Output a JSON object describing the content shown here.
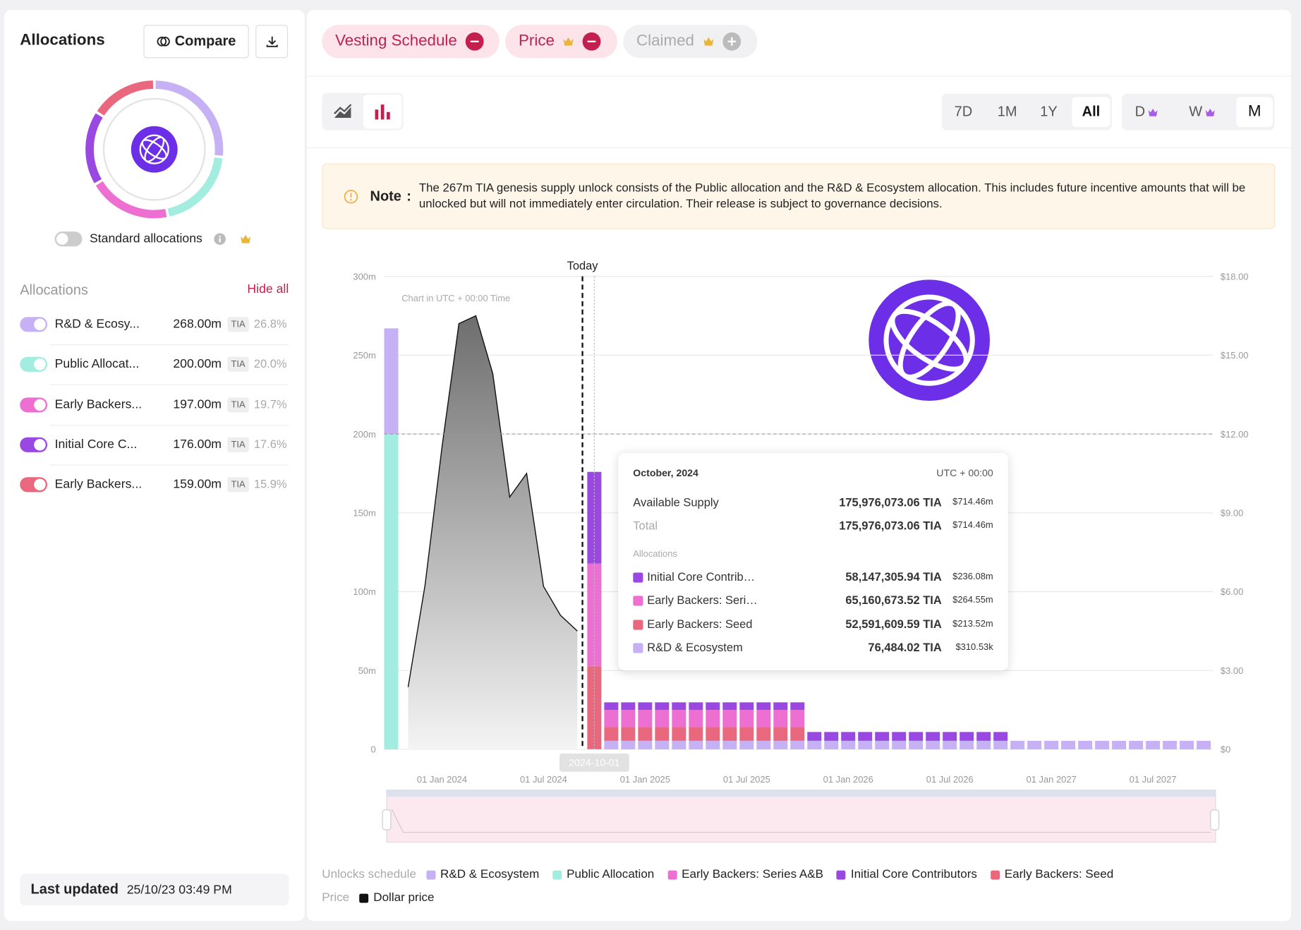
{
  "sidebar": {
    "title": "Allocations",
    "compare_button": "Compare",
    "toggle_label": "Standard allocations",
    "list_title": "Allocations",
    "hide_all": "Hide all",
    "allocations": [
      {
        "name": "R&D & Ecosy...",
        "amount": "268.00m",
        "unit": "TIA",
        "share": 26.8,
        "share_label": "26.8%",
        "color": "#c6b1f5"
      },
      {
        "name": "Public Allocat...",
        "amount": "200.00m",
        "unit": "TIA",
        "share": 20.0,
        "share_label": "20.0%",
        "color": "#a3ede0"
      },
      {
        "name": "Early Backers...",
        "amount": "197.00m",
        "unit": "TIA",
        "share": 19.7,
        "share_label": "19.7%",
        "color": "#ee6fd2"
      },
      {
        "name": "Initial Core C...",
        "amount": "176.00m",
        "unit": "TIA",
        "share": 17.6,
        "share_label": "17.6%",
        "color": "#9a48e2"
      },
      {
        "name": "Early Backers...",
        "amount": "159.00m",
        "unit": "TIA",
        "share": 15.9,
        "share_label": "15.9%",
        "color": "#e9687e"
      }
    ],
    "last_updated_label": "Last updated",
    "last_updated": "25/10/23 03:49 PM"
  },
  "tabs": [
    "Vesting Schedule",
    "Price",
    "Claimed"
  ],
  "time_ranges": [
    "7D",
    "1M",
    "1Y",
    "All"
  ],
  "intervals": [
    "D",
    "W",
    "M"
  ],
  "note": {
    "label": "Note",
    "separator": ":",
    "text": "The 267m TIA genesis supply unlock consists of the Public allocation and the R&D & Ecosystem allocation. This includes future incentive amounts that will be unlocked but will not immediately enter circulation. Their release is subject to governance decisions."
  },
  "chart": {
    "type": "bar",
    "stacked": true,
    "today_label": "Today",
    "timezone_note": "Chart in UTC + 00:00 Time",
    "crosshair_label": "2024-10-01",
    "reference_line": 200,
    "categories": [
      null,
      null,
      null,
      "01 Jan 2024",
      null,
      null,
      null,
      null,
      null,
      "01 Jul 2024",
      null,
      null,
      null,
      null,
      null,
      "01 Jan 2025",
      null,
      null,
      null,
      null,
      null,
      "01 Jul 2025",
      null,
      null,
      null,
      null,
      null,
      "01 Jan 2026",
      null,
      null,
      null,
      null,
      null,
      "01 Jul 2026",
      null,
      null,
      null,
      null,
      null,
      "01 Jan 2027",
      null,
      null,
      null,
      null,
      null,
      "01 Jul 2027",
      null,
      null,
      null
    ],
    "series": [
      {
        "name": "R&D & Ecosystem",
        "color": "#c6b1f5",
        "values": [
          67,
          0,
          0,
          0,
          0,
          0,
          0,
          0,
          0,
          0,
          0,
          0,
          0.0765,
          5.4,
          5.4,
          5.4,
          5.4,
          5.4,
          5.4,
          5.4,
          5.4,
          5.4,
          5.4,
          5.4,
          5.4,
          5.4,
          5.4,
          5.4,
          5.4,
          5.4,
          5.4,
          5.4,
          5.4,
          5.4,
          5.4,
          5.4,
          5.4,
          5.4,
          5.4,
          5.4,
          5.4,
          5.4,
          5.4,
          5.4,
          5.4,
          5.4,
          5.4,
          5.4,
          5.4
        ]
      },
      {
        "name": "Public Allocation",
        "color": "#a3ede0",
        "values": [
          200,
          0,
          0,
          0,
          0,
          0,
          0,
          0,
          0,
          0,
          0,
          0,
          0,
          0,
          0,
          0,
          0,
          0,
          0,
          0,
          0,
          0,
          0,
          0,
          0,
          0,
          0,
          0,
          0,
          0,
          0,
          0,
          0,
          0,
          0,
          0,
          0,
          0,
          0,
          0,
          0,
          0,
          0,
          0,
          0,
          0,
          0,
          0,
          0
        ]
      },
      {
        "name": "Early Backers: Series A&B",
        "color": "#ee6fd2",
        "values": [
          0,
          0,
          0,
          0,
          0,
          0,
          0,
          0,
          0,
          0,
          0,
          0,
          65.16,
          10.9,
          10.9,
          10.9,
          10.9,
          10.9,
          10.9,
          10.9,
          10.9,
          10.9,
          10.9,
          10.9,
          10.9,
          0,
          0,
          0,
          0,
          0,
          0,
          0,
          0,
          0,
          0,
          0,
          0,
          0,
          0,
          0,
          0,
          0,
          0,
          0,
          0,
          0,
          0,
          0,
          0
        ]
      },
      {
        "name": "Initial Core Contributors",
        "color": "#9a48e2",
        "values": [
          0,
          0,
          0,
          0,
          0,
          0,
          0,
          0,
          0,
          0,
          0,
          0,
          58.15,
          4.8,
          4.8,
          4.8,
          4.8,
          4.8,
          4.8,
          4.8,
          4.8,
          4.8,
          4.8,
          4.8,
          4.8,
          5.6,
          5.6,
          5.6,
          5.6,
          5.6,
          5.6,
          5.6,
          5.6,
          5.6,
          5.6,
          5.6,
          5.6,
          0,
          0,
          0,
          0,
          0,
          0,
          0,
          0,
          0,
          0,
          0,
          0
        ]
      },
      {
        "name": "Early Backers: Seed",
        "color": "#e9687e",
        "values": [
          0,
          0,
          0,
          0,
          0,
          0,
          0,
          0,
          0,
          0,
          0,
          0,
          52.59,
          8.7,
          8.7,
          8.7,
          8.7,
          8.7,
          8.7,
          8.7,
          8.7,
          8.7,
          8.7,
          8.7,
          8.7,
          0,
          0,
          0,
          0,
          0,
          0,
          0,
          0,
          0,
          0,
          0,
          0,
          0,
          0,
          0,
          0,
          0,
          0,
          0,
          0,
          0,
          0,
          0,
          0
        ]
      },
      {
        "name": "Dollar price",
        "color": "#111111",
        "type": "line",
        "axis": "y2",
        "values": [
          null,
          2.37,
          6.25,
          11.5,
          16.2,
          16.5,
          14.3,
          9.6,
          10.5,
          6.2,
          5.1,
          4.5,
          null,
          null,
          null,
          null,
          null,
          null,
          null,
          null,
          null,
          null,
          null,
          null,
          null,
          null,
          null,
          null,
          null,
          null,
          null,
          null,
          null,
          null,
          null,
          null,
          null,
          null,
          null,
          null,
          null,
          null,
          null,
          null,
          null,
          null,
          null,
          null,
          null
        ]
      }
    ],
    "ylim": [
      0,
      300
    ],
    "yticks": [
      0,
      {
        "value": 50,
        "label": "50m"
      },
      {
        "value": 100,
        "label": "100m"
      },
      {
        "value": 150,
        "label": "150m"
      },
      {
        "value": 200,
        "label": "200m"
      },
      {
        "value": 250,
        "label": "250m"
      },
      {
        "value": 300,
        "label": "300m"
      }
    ],
    "y2lim": [
      0,
      18
    ],
    "y2ticks": [
      {
        "value": 0,
        "label": "$0"
      },
      {
        "value": 3,
        "label": "$3.00"
      },
      {
        "value": 6,
        "label": "$6.00"
      },
      {
        "value": 9,
        "label": "$9.00"
      },
      {
        "value": 12,
        "label": "$12.00"
      },
      {
        "value": 15,
        "label": "$15.00"
      },
      {
        "value": 18,
        "label": "$18.00"
      }
    ],
    "grid": true,
    "legend": {
      "schedule_label": "Unlocks schedule",
      "price_label": "Price"
    },
    "tooltip": {
      "title": "October, 2024",
      "timezone": "UTC + 00:00",
      "rows": [
        {
          "label": "Available Supply",
          "amount": "175,976,073.06 TIA",
          "usd": "$714.46m"
        },
        {
          "label": "Total",
          "amount": "175,976,073.06 TIA",
          "usd": "$714.46m"
        }
      ],
      "section": "Allocations",
      "items": [
        {
          "name": "Initial Core Contrib…",
          "amount": "58,147,305.94 TIA",
          "usd": "$236.08m",
          "color": "#9a48e2"
        },
        {
          "name": "Early Backers: Seri…",
          "amount": "65,160,673.52 TIA",
          "usd": "$264.55m",
          "color": "#ee6fd2"
        },
        {
          "name": "Early Backers: Seed",
          "amount": "52,591,609.59 TIA",
          "usd": "$213.52m",
          "color": "#e9687e"
        },
        {
          "name": "R&D & Ecosystem",
          "amount": "76,484.02 TIA",
          "usd": "$310.53k",
          "color": "#c6b1f5"
        }
      ]
    }
  }
}
